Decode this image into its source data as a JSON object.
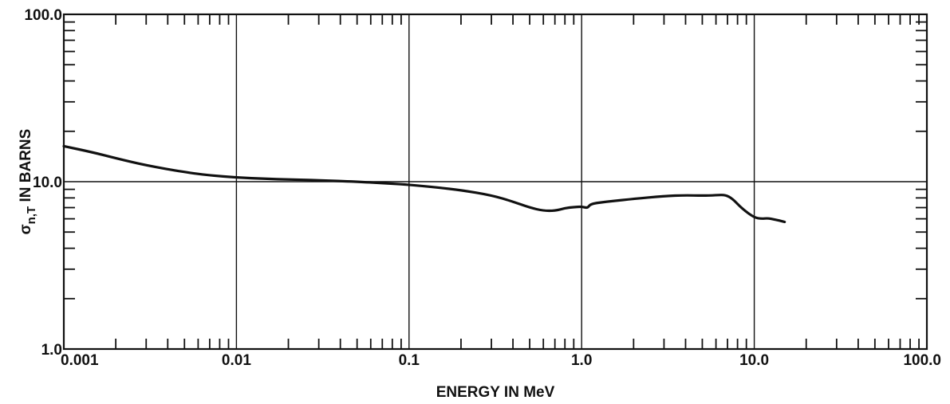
{
  "chart_data": {
    "type": "line",
    "xlabel": "ENERGY  IN  MeV",
    "ylabel": "IN  BARNS",
    "ylabel_symbol": "σ",
    "ylabel_subscript": "n,T",
    "x_scale": "log",
    "y_scale": "log",
    "xlim": [
      0.001,
      100.0
    ],
    "ylim": [
      1.0,
      100.0
    ],
    "grid": true,
    "x_tick_labels": [
      {
        "value": 0.001,
        "label": "0.001"
      },
      {
        "value": 0.01,
        "label": "0.01"
      },
      {
        "value": 0.1,
        "label": "0.1"
      },
      {
        "value": 1.0,
        "label": "1.0"
      },
      {
        "value": 10.0,
        "label": "10.0"
      },
      {
        "value": 100.0,
        "label": "100.0"
      }
    ],
    "y_tick_labels": [
      {
        "value": 1.0,
        "label": "1.0"
      },
      {
        "value": 10.0,
        "label": "10.0"
      },
      {
        "value": 100.0,
        "label": "100.0"
      }
    ],
    "series": [
      {
        "x": [
          0.001,
          0.0015,
          0.002,
          0.003,
          0.005,
          0.007,
          0.01,
          0.015,
          0.02,
          0.03,
          0.05,
          0.07,
          0.1,
          0.15,
          0.2,
          0.3,
          0.4,
          0.5,
          0.6,
          0.7,
          0.8,
          0.9,
          1.0,
          1.08,
          1.12,
          1.2,
          1.5,
          2.0,
          3.0,
          4.0,
          5.0,
          6.0,
          6.8,
          7.5,
          8.5,
          10.0,
          11.0,
          12.0,
          13.0,
          14.0,
          15.0
        ],
        "y": [
          16.3,
          14.9,
          13.8,
          12.5,
          11.4,
          10.9,
          10.6,
          10.4,
          10.3,
          10.2,
          10.0,
          9.8,
          9.6,
          9.2,
          8.9,
          8.3,
          7.6,
          7.0,
          6.7,
          6.7,
          6.95,
          7.05,
          7.1,
          6.95,
          7.3,
          7.45,
          7.65,
          7.9,
          8.2,
          8.3,
          8.25,
          8.3,
          8.35,
          7.9,
          6.9,
          6.1,
          6.0,
          6.05,
          5.95,
          5.85,
          5.75
        ]
      }
    ]
  }
}
